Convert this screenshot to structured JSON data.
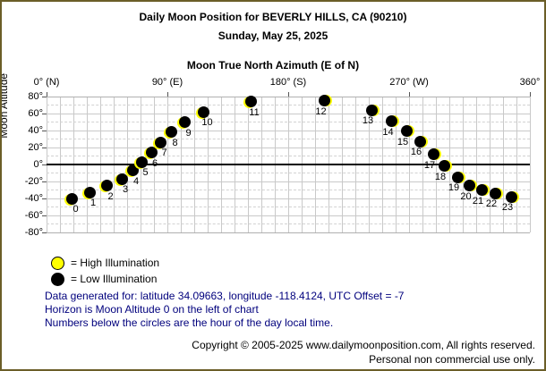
{
  "window": {
    "title_line1": "Daily Moon Position for BEVERLY HILLS, CA (90210)",
    "title_line2": "Sunday, May 25, 2025"
  },
  "chart_data": {
    "type": "scatter",
    "title": "Moon True North Azimuth (E of N)",
    "ylabel": "Moon Altitude",
    "xlim": [
      0,
      360
    ],
    "ylim": [
      -80,
      80
    ],
    "x_grid_step_deg": 10,
    "y_grid_step_deg": 10,
    "grid": "on",
    "x_ticks": [
      {
        "az": 0,
        "label": "0° (N)"
      },
      {
        "az": 90,
        "label": "90° (E)"
      },
      {
        "az": 180,
        "label": "180° (S)"
      },
      {
        "az": 270,
        "label": "270° (W)"
      },
      {
        "az": 360,
        "label": "360°"
      }
    ],
    "y_ticks": [
      {
        "alt": 80,
        "label": "80°"
      },
      {
        "alt": 60,
        "label": "60°"
      },
      {
        "alt": 40,
        "label": "40°"
      },
      {
        "alt": 20,
        "label": "20°"
      },
      {
        "alt": 0,
        "label": "0°"
      },
      {
        "alt": -20,
        "label": "-20°"
      },
      {
        "alt": -40,
        "label": "-40°"
      },
      {
        "alt": -60,
        "label": "-60°"
      },
      {
        "alt": -80,
        "label": "-80°"
      }
    ],
    "series": [
      {
        "name": "Hourly moon position (hour of day, local time)",
        "illumination": "low",
        "marker_fill": "#000000",
        "marker_crescent": "#ffff00",
        "points": [
          {
            "hour": 0,
            "azimuth": 19,
            "altitude": -40
          },
          {
            "hour": 1,
            "azimuth": 32,
            "altitude": -33
          },
          {
            "hour": 2,
            "azimuth": 45,
            "altitude": -25
          },
          {
            "hour": 3,
            "azimuth": 56,
            "altitude": -17
          },
          {
            "hour": 4,
            "azimuth": 64,
            "altitude": -7
          },
          {
            "hour": 5,
            "azimuth": 71,
            "altitude": 3
          },
          {
            "hour": 6,
            "azimuth": 78,
            "altitude": 14
          },
          {
            "hour": 7,
            "azimuth": 85,
            "altitude": 26
          },
          {
            "hour": 8,
            "azimuth": 93,
            "altitude": 38
          },
          {
            "hour": 9,
            "azimuth": 103,
            "altitude": 50
          },
          {
            "hour": 10,
            "azimuth": 117,
            "altitude": 62
          },
          {
            "hour": 11,
            "azimuth": 152,
            "altitude": 74
          },
          {
            "hour": 12,
            "azimuth": 207,
            "altitude": 75
          },
          {
            "hour": 13,
            "azimuth": 242,
            "altitude": 64
          },
          {
            "hour": 14,
            "azimuth": 257,
            "altitude": 51
          },
          {
            "hour": 15,
            "azimuth": 268,
            "altitude": 39
          },
          {
            "hour": 16,
            "azimuth": 278,
            "altitude": 27
          },
          {
            "hour": 17,
            "azimuth": 288,
            "altitude": 12
          },
          {
            "hour": 18,
            "azimuth": 296,
            "altitude": -2
          },
          {
            "hour": 19,
            "azimuth": 306,
            "altitude": -15
          },
          {
            "hour": 20,
            "azimuth": 315,
            "altitude": -25
          },
          {
            "hour": 21,
            "azimuth": 324,
            "altitude": -30
          },
          {
            "hour": 22,
            "azimuth": 334,
            "altitude": -34
          },
          {
            "hour": 23,
            "azimuth": 346,
            "altitude": -38
          }
        ]
      }
    ]
  },
  "legend": {
    "high_label": "= High Illumination",
    "low_label": "= Low Illumination",
    "high_color": "#ffff00",
    "low_color": "#000000"
  },
  "notes": {
    "line1": "Data generated for: latitude 34.09663, longitude -118.4124, UTC Offset = -7",
    "line2": "Horizon is Moon Altitude 0 on the left of chart",
    "line3": "Numbers below the circles are the hour of the day local time.",
    "color": "#00007d"
  },
  "footer": {
    "line1": "Copyright © 2005-2025 www.dailymoonposition.com, All rights reserved.",
    "line2": "Personal non commercial use only."
  }
}
